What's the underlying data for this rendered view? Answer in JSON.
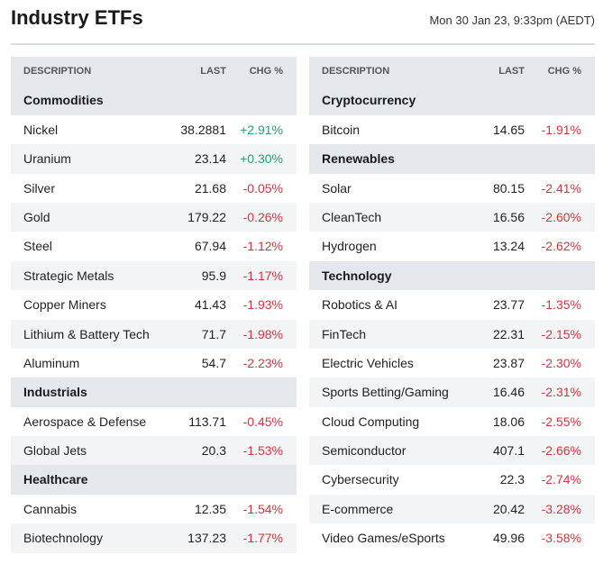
{
  "header": {
    "title": "Industry ETFs",
    "timestamp": "Mon 30 Jan 23, 9:33pm (AEDT)"
  },
  "columns": {
    "description": "DESCRIPTION",
    "last": "LAST",
    "chg": "CHG %"
  },
  "left_table": [
    {
      "type": "group",
      "name": "Commodities"
    },
    {
      "type": "item",
      "name": "Nickel",
      "last": "38.2881",
      "chg": "+2.91%",
      "dir": "pos"
    },
    {
      "type": "item",
      "name": "Uranium",
      "last": "23.14",
      "chg": "+0.30%",
      "dir": "pos"
    },
    {
      "type": "item",
      "name": "Silver",
      "last": "21.68",
      "chg": "-0.05%",
      "dir": "neg"
    },
    {
      "type": "item",
      "name": "Gold",
      "last": "179.22",
      "chg": "-0.26%",
      "dir": "neg"
    },
    {
      "type": "item",
      "name": "Steel",
      "last": "67.94",
      "chg": "-1.12%",
      "dir": "neg"
    },
    {
      "type": "item",
      "name": "Strategic Metals",
      "last": "95.9",
      "chg": "-1.17%",
      "dir": "neg"
    },
    {
      "type": "item",
      "name": "Copper Miners",
      "last": "41.43",
      "chg": "-1.93%",
      "dir": "neg"
    },
    {
      "type": "item",
      "name": "Lithium & Battery Tech",
      "last": "71.7",
      "chg": "-1.98%",
      "dir": "neg"
    },
    {
      "type": "item",
      "name": "Aluminum",
      "last": "54.7",
      "chg": "-2.23%",
      "dir": "neg"
    },
    {
      "type": "group",
      "name": "Industrials"
    },
    {
      "type": "item",
      "name": "Aerospace & Defense",
      "last": "113.71",
      "chg": "-0.45%",
      "dir": "neg"
    },
    {
      "type": "item",
      "name": "Global Jets",
      "last": "20.3",
      "chg": "-1.53%",
      "dir": "neg"
    },
    {
      "type": "group",
      "name": "Healthcare"
    },
    {
      "type": "item",
      "name": "Cannabis",
      "last": "12.35",
      "chg": "-1.54%",
      "dir": "neg"
    },
    {
      "type": "item",
      "name": "Biotechnology",
      "last": "137.23",
      "chg": "-1.77%",
      "dir": "neg"
    }
  ],
  "right_table": [
    {
      "type": "group",
      "name": "Cryptocurrency"
    },
    {
      "type": "item",
      "name": "Bitcoin",
      "last": "14.65",
      "chg": "-1.91%",
      "dir": "neg"
    },
    {
      "type": "group",
      "name": "Renewables"
    },
    {
      "type": "item",
      "name": "Solar",
      "last": "80.15",
      "chg": "-2.41%",
      "dir": "neg"
    },
    {
      "type": "item",
      "name": "CleanTech",
      "last": "16.56",
      "chg": "-2.60%",
      "dir": "neg"
    },
    {
      "type": "item",
      "name": "Hydrogen",
      "last": "13.24",
      "chg": "-2.62%",
      "dir": "neg"
    },
    {
      "type": "group",
      "name": "Technology"
    },
    {
      "type": "item",
      "name": "Robotics & AI",
      "last": "23.77",
      "chg": "-1.35%",
      "dir": "neg"
    },
    {
      "type": "item",
      "name": "FinTech",
      "last": "22.31",
      "chg": "-2.15%",
      "dir": "neg"
    },
    {
      "type": "item",
      "name": "Electric Vehicles",
      "last": "23.87",
      "chg": "-2.30%",
      "dir": "neg"
    },
    {
      "type": "item",
      "name": "Sports Betting/Gaming",
      "last": "16.46",
      "chg": "-2.31%",
      "dir": "neg"
    },
    {
      "type": "item",
      "name": "Cloud Computing",
      "last": "18.06",
      "chg": "-2.55%",
      "dir": "neg"
    },
    {
      "type": "item",
      "name": "Semiconductor",
      "last": "407.1",
      "chg": "-2.66%",
      "dir": "neg"
    },
    {
      "type": "item",
      "name": "Cybersecurity",
      "last": "22.3",
      "chg": "-2.74%",
      "dir": "neg"
    },
    {
      "type": "item",
      "name": "E-commerce",
      "last": "20.42",
      "chg": "-3.28%",
      "dir": "neg"
    },
    {
      "type": "item",
      "name": "Video Games/eSports",
      "last": "49.96",
      "chg": "-3.58%",
      "dir": "neg"
    }
  ],
  "colors": {
    "positive": "#2a9d7a",
    "negative": "#d9343e",
    "header_bg": "#e4e8ed",
    "stripe_bg": "#f3f4f6"
  }
}
